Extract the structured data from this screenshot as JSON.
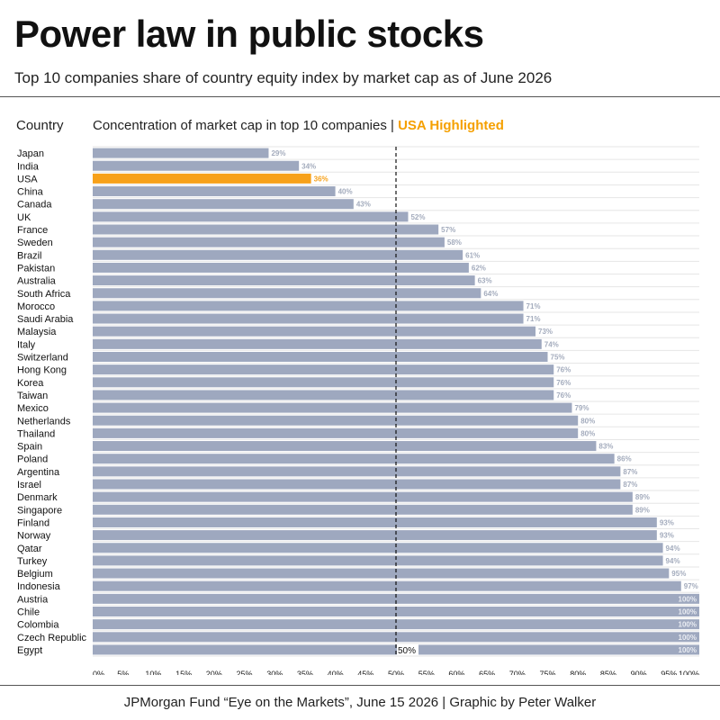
{
  "header": {
    "title": "Power law in public stocks",
    "subtitle": "Top 10 companies share of country equity index by market cap as of June 2026"
  },
  "columns": {
    "country": "Country",
    "concentration": "Concentration of market cap in top 10 companies",
    "separator": " | ",
    "highlight": "USA Highlighted"
  },
  "footer": {
    "source": "JPMorgan Fund “Eye on the Markets”, June 15 2026 | Graphic by Peter Walker"
  },
  "colors": {
    "bar": "#9ea8bf",
    "highlight": "#f7a11a",
    "label": "#a4acbd",
    "grid": "#e6e6e6",
    "reference_line": "#111111"
  },
  "chart_data": {
    "type": "bar",
    "orientation": "horizontal",
    "categories": [
      "Japan",
      "India",
      "USA",
      "China",
      "Canada",
      "UK",
      "France",
      "Sweden",
      "Brazil",
      "Pakistan",
      "Australia",
      "South Africa",
      "Morocco",
      "Saudi Arabia",
      "Malaysia",
      "Italy",
      "Switzerland",
      "Hong Kong",
      "Korea",
      "Taiwan",
      "Mexico",
      "Netherlands",
      "Thailand",
      "Spain",
      "Poland",
      "Argentina",
      "Israel",
      "Denmark",
      "Singapore",
      "Finland",
      "Norway",
      "Qatar",
      "Turkey",
      "Belgium",
      "Indonesia",
      "Austria",
      "Chile",
      "Colombia",
      "Czech Republic",
      "Egypt"
    ],
    "values": [
      29,
      34,
      36,
      40,
      43,
      52,
      57,
      58,
      61,
      62,
      63,
      64,
      71,
      71,
      73,
      74,
      75,
      76,
      76,
      76,
      79,
      80,
      80,
      83,
      86,
      87,
      87,
      89,
      89,
      93,
      93,
      94,
      94,
      95,
      97,
      100,
      100,
      100,
      100,
      100
    ],
    "value_labels": [
      "29%",
      "34%",
      "36%",
      "40%",
      "43%",
      "52%",
      "57%",
      "58%",
      "61%",
      "62%",
      "63%",
      "64%",
      "71%",
      "71%",
      "73%",
      "74%",
      "75%",
      "76%",
      "76%",
      "76%",
      "79%",
      "80%",
      "80%",
      "83%",
      "86%",
      "87%",
      "87%",
      "89%",
      "89%",
      "93%",
      "93%",
      "94%",
      "94%",
      "95%",
      "97%",
      "100%",
      "100%",
      "100%",
      "100%",
      "100%"
    ],
    "highlight": "USA",
    "xlim": [
      0,
      100
    ],
    "x_ticks": [
      "0%",
      "5%",
      "10%",
      "15%",
      "20%",
      "25%",
      "30%",
      "35%",
      "40%",
      "45%",
      "50%",
      "55%",
      "60%",
      "65%",
      "70%",
      "75%",
      "80%",
      "85%",
      "90%",
      "95%",
      "100%"
    ],
    "reference_line": {
      "value": 50,
      "label": "50%"
    },
    "grid": true
  }
}
